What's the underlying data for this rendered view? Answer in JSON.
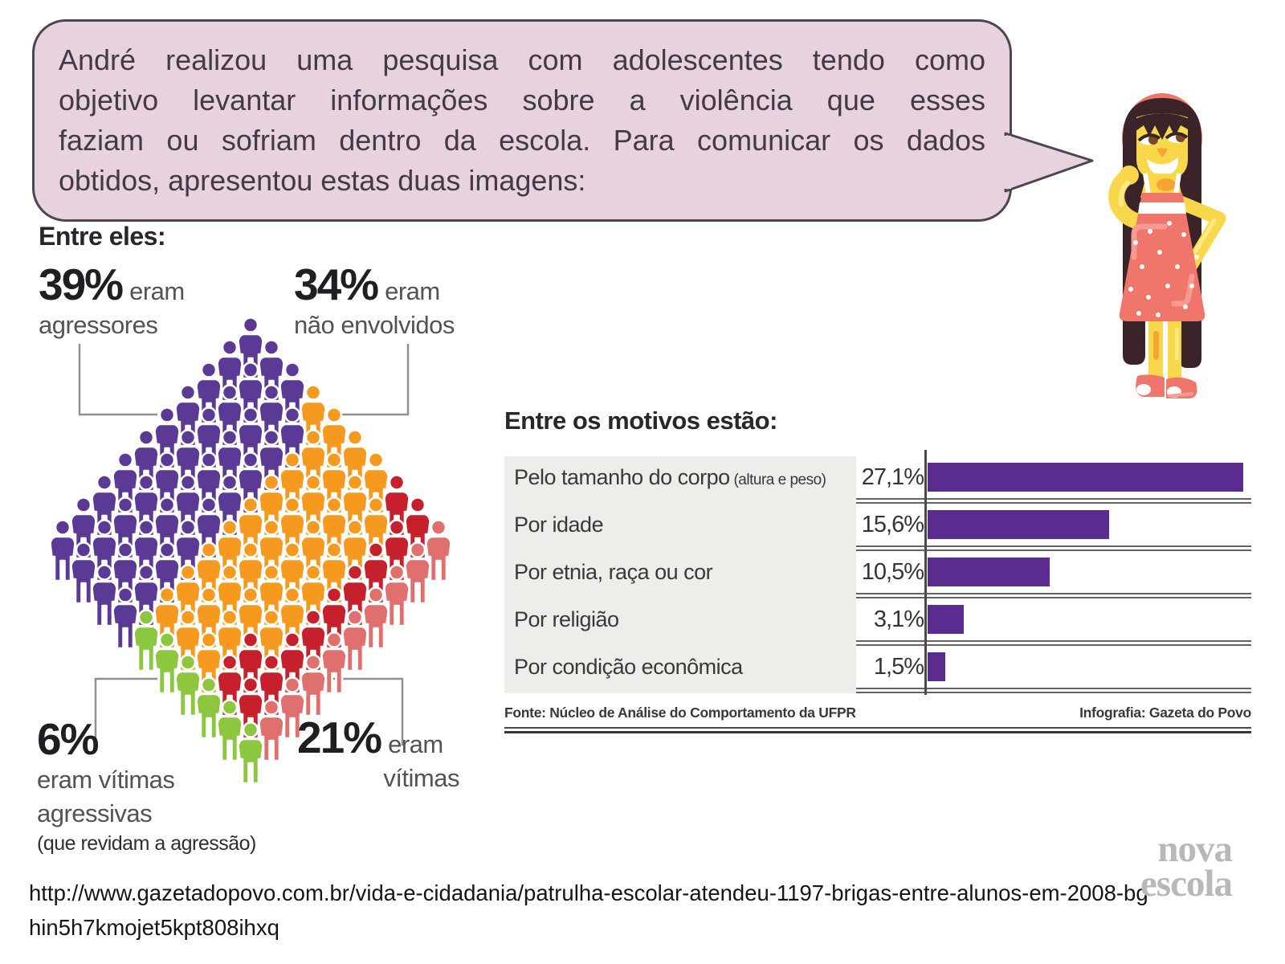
{
  "bubble": {
    "text": "André realizou uma pesquisa com adolescentes tendo como objetivo levantar informações sobre a violência que esses faziam ou sofriam dentro da escola. Para comunicar os dados obtidos, apresentou estas duas imagens:",
    "lines": [
      "André realizou uma pesquisa com adolescentes tendo como",
      "objetivo levantar informações sobre a violência que esses",
      "faziam ou sofriam dentro da escola. Para comunicar os dados",
      "obtidos, apresentou estas duas imagens:"
    ]
  },
  "waffle": {
    "title": "Entre eles:",
    "grid_rows": [
      "PPPOOOORRr",
      "PPPPOOOORr",
      "PPPPOOOORr",
      "PPPPOOOORr",
      "PPPPOOOORr",
      "PPPPOOOORr",
      "PPPPOOOORr",
      "PPPPOOORRr",
      "PPPPOOORRr",
      "PPPPGGGGGG"
    ],
    "color_map": {
      "P": "#5b3a96",
      "O": "#f59a1f",
      "R": "#c5202b",
      "r": "#e0706e",
      "G": "#8dc63f"
    },
    "callouts": {
      "agressores": {
        "percent": "39%",
        "suffix": "eram",
        "label": "agressores"
      },
      "nao_envolvidos": {
        "percent": "34%",
        "suffix": "eram",
        "label": "não envolvidos"
      },
      "vitimas_agressivas": {
        "percent": "6%",
        "line1": "eram vítimas",
        "line2": "agressivas",
        "note": "(que revidam a agressão)"
      },
      "vitimas": {
        "percent": "21%",
        "suffix": "eram",
        "label": "vítimas"
      }
    }
  },
  "chart_data": [
    {
      "type": "waffle",
      "title": "Entre eles:",
      "categories": [
        "agressores",
        "não envolvidos",
        "vítimas",
        "vítimas agressivas (que revidam a agressão)"
      ],
      "values": [
        39,
        34,
        21,
        6
      ],
      "unit": "%",
      "total_icons": 100,
      "colors": [
        "#5b3a96",
        "#f59a1f",
        "#c5202b",
        "#8dc63f"
      ]
    },
    {
      "type": "bar",
      "orientation": "horizontal",
      "title": "Entre os motivos estão:",
      "categories": [
        "Pelo tamanho do corpo",
        "Por idade",
        "Por etnia, raça ou cor",
        "Por religião",
        "Por condição econômica"
      ],
      "category_notes": [
        "(altura e peso)",
        "",
        "",
        "",
        ""
      ],
      "values": [
        27.1,
        15.6,
        10.5,
        3.1,
        1.5
      ],
      "value_labels": [
        "27,1%",
        "15,6%",
        "10,5%",
        "3,1%",
        "1,5%"
      ],
      "unit": "%",
      "axis_max": 27.1,
      "grid": false,
      "legend_position": "none",
      "bar_color": "#5a2c8f",
      "source": "Fonte: Núcleo de Análise do Comportamento da UFPR",
      "credit": "Infografia: Gazeta do Povo"
    }
  ],
  "footer": {
    "url_line1": "http://www.gazetadopovo.com.br/vida-e-cidadania/patrulha-escolar-atendeu-1197-brigas-entre-alunos-em-2008-bg",
    "url_line2": "hin5h7kmojet5kpt808ihxq"
  },
  "logo": {
    "line1": "nova",
    "line2": "escola"
  }
}
